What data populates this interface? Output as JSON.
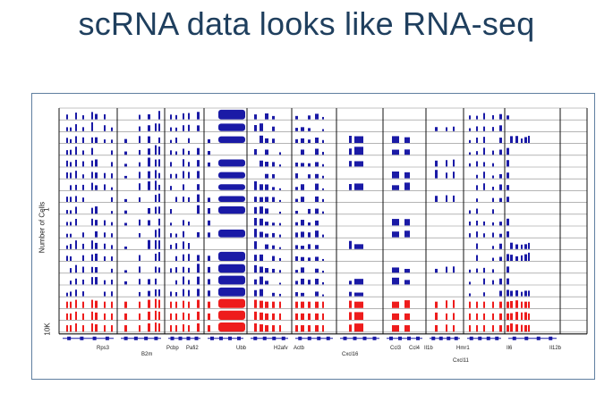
{
  "slide": {
    "title": "scRNA data looks like RNA-seq"
  },
  "figure": {
    "y_axis_label": "Number of Cells",
    "scale_label_top": "1",
    "scale_label_bottom": "10K",
    "colors": {
      "single_cell": "#1a1aa6",
      "bulk": "#ee1c1c",
      "row_line": "#888888",
      "axis": "#111111",
      "gene_model": "#1a1aa6"
    },
    "single_cell_rows": 16,
    "bulk_rows": 3,
    "genes": [
      {
        "name": "Rps3",
        "row": 1
      },
      {
        "name": "B2m",
        "row": 2
      },
      {
        "name": "Pcbp",
        "row": 1
      },
      {
        "name": "Pafi2",
        "row": 1
      },
      {
        "name": "Ubb",
        "row": 1
      },
      {
        "name": "H2afv",
        "row": 1
      },
      {
        "name": "Actb",
        "row": 1
      },
      {
        "name": "Cxcl16",
        "row": 2
      },
      {
        "name": "Ccl3",
        "row": 1
      },
      {
        "name": "Ccl4",
        "row": 1
      },
      {
        "name": "Il1b",
        "row": 1
      },
      {
        "name": "Hmr1",
        "row": 1
      },
      {
        "name": "Cxcl11",
        "row": 3
      },
      {
        "name": "Il6",
        "row": 1
      },
      {
        "name": "Il12b",
        "row": 1
      }
    ]
  }
}
